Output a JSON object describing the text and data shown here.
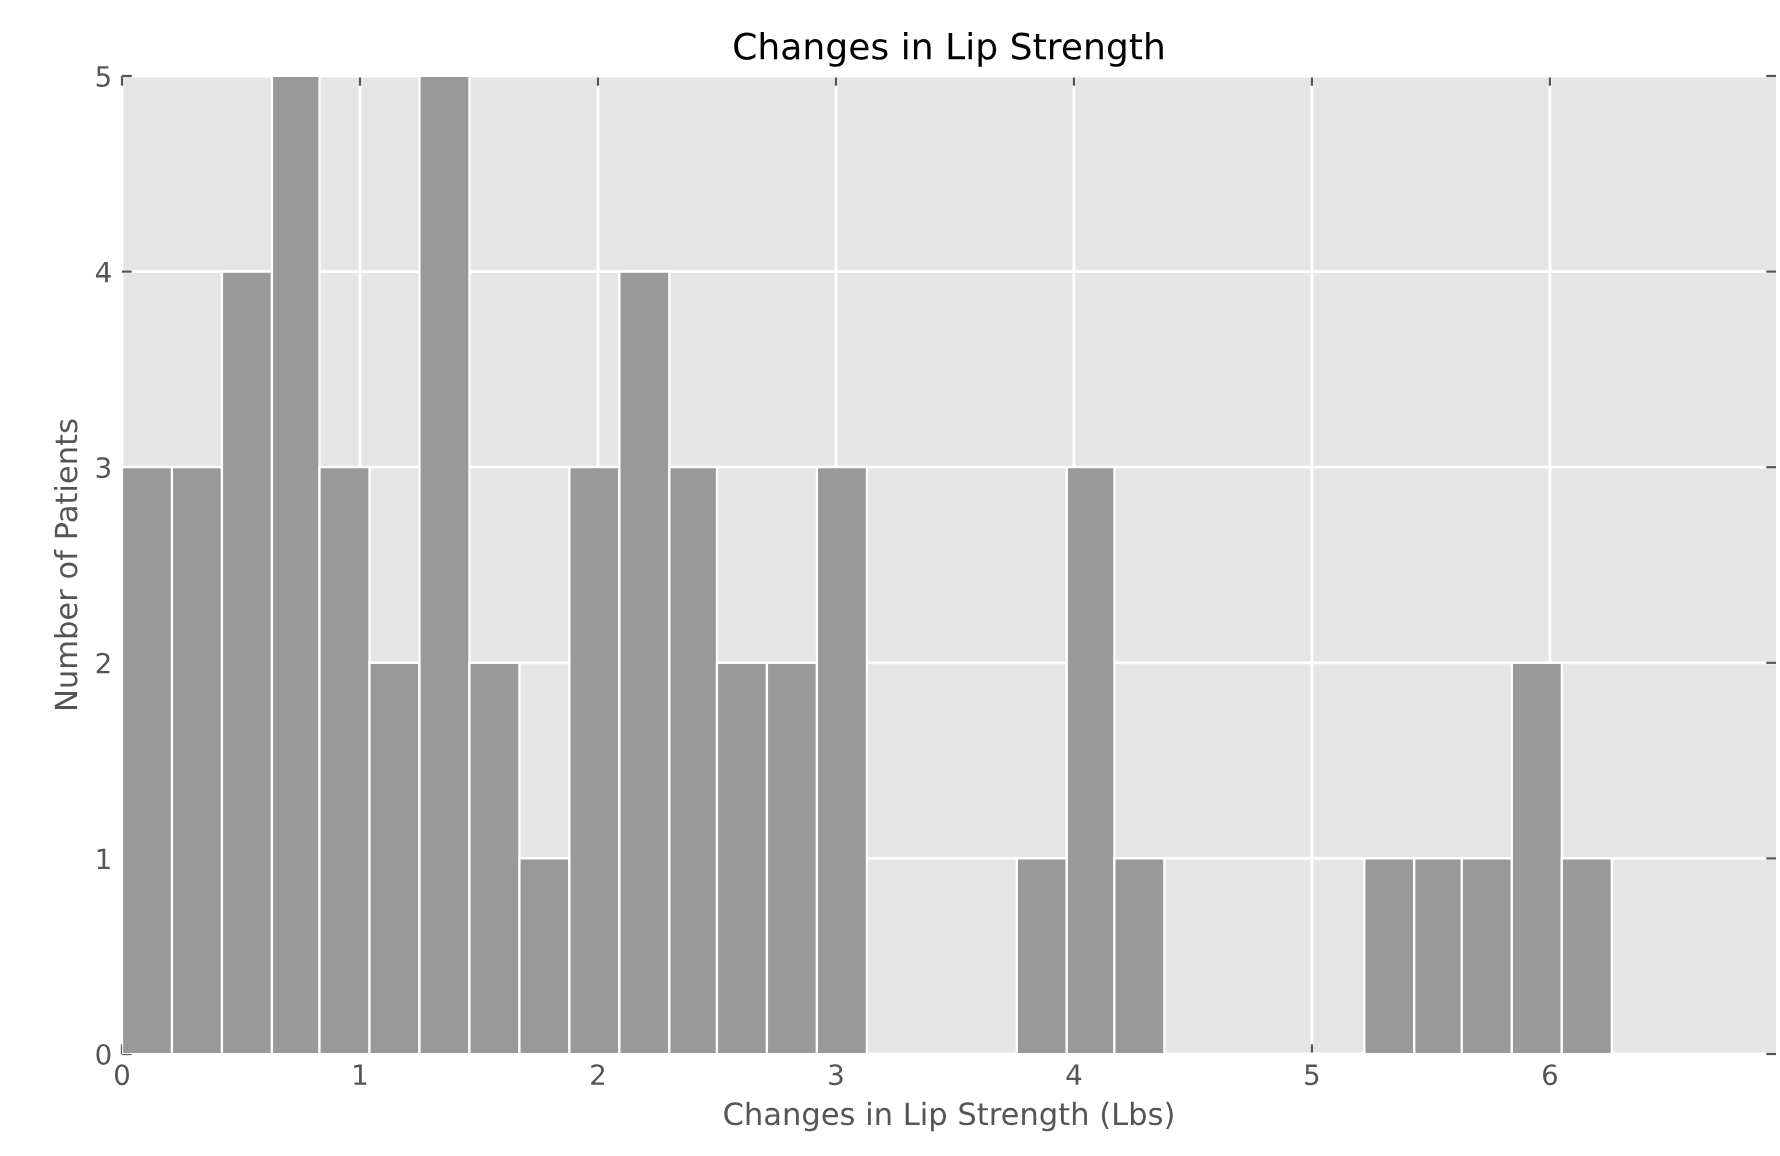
{
  "chart_data": {
    "type": "histogram",
    "title": "Changes in Lip Strength",
    "xlabel": "Changes in Lip Strength (Lbs)",
    "ylabel": "Number of Patients",
    "bins": [
      0,
      0.21,
      0.42,
      0.63,
      0.83,
      1.04,
      1.25,
      1.46,
      1.67,
      1.88,
      2.09,
      2.3,
      2.5,
      2.71,
      2.92,
      3.13,
      3.76,
      3.97,
      4.17,
      4.38,
      5.22,
      5.43,
      5.63,
      5.84,
      6.05,
      6.26
    ],
    "values": [
      3,
      3,
      4,
      5,
      3,
      2,
      5,
      2,
      1,
      3,
      4,
      3,
      2,
      2,
      3,
      0,
      1,
      3,
      1,
      0,
      1,
      1,
      1,
      2,
      1
    ],
    "color": "#999999",
    "xlim": [
      0,
      6.95
    ],
    "xticks": [
      0,
      1,
      2,
      3,
      4,
      5,
      6
    ],
    "ylim": [
      0,
      5
    ],
    "yticks": [
      0,
      1,
      2,
      3,
      4,
      5
    ],
    "grid": true
  }
}
